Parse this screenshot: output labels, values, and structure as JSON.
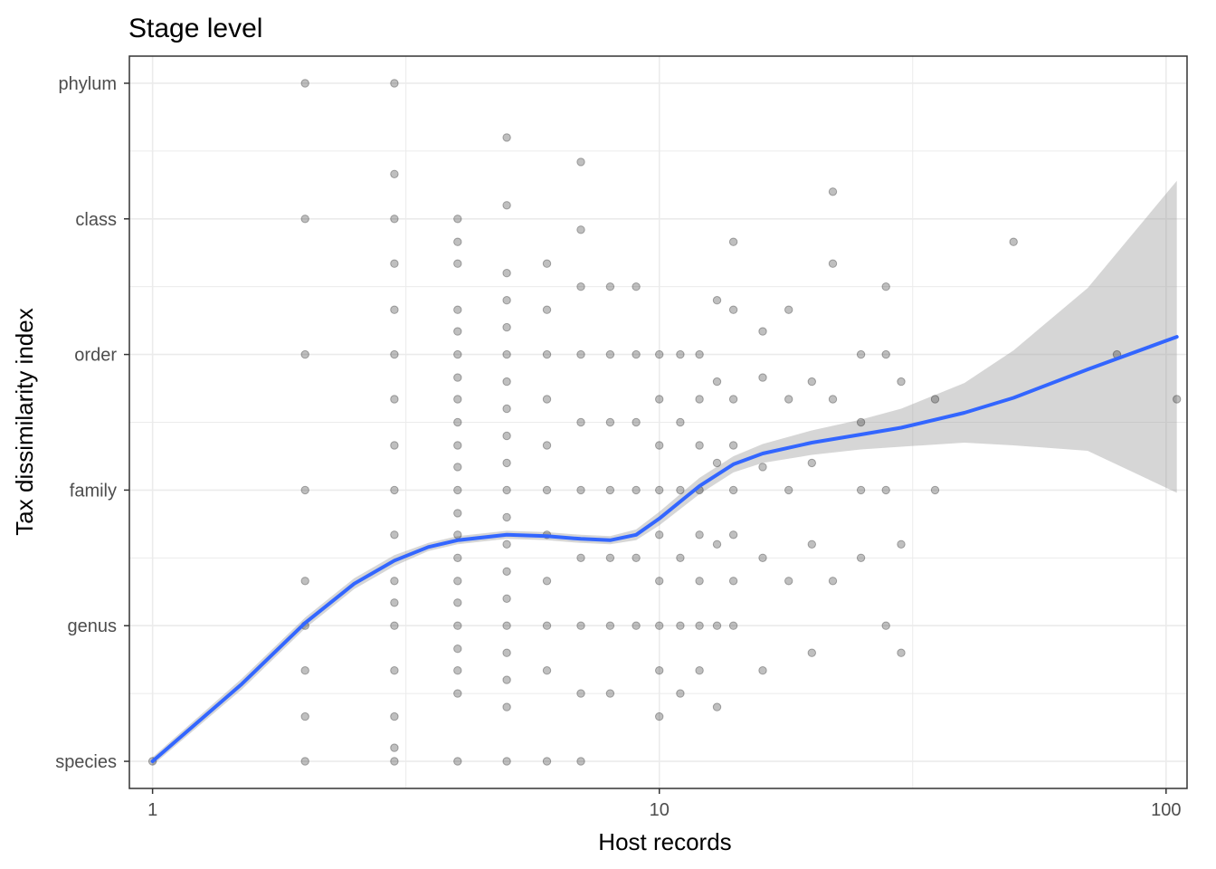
{
  "chart_data": {
    "type": "scatter",
    "title": "Stage level",
    "xlabel": "Host records",
    "ylabel": "Tax dissimilarity index",
    "x_scale": "log10",
    "xlim": [
      0.9,
      110
    ],
    "ylim": [
      0.8,
      6.2
    ],
    "x_ticks": [
      1,
      10,
      100
    ],
    "x_tick_labels": [
      "1",
      "10",
      "100"
    ],
    "y_ticks": [
      1,
      2,
      3,
      4,
      5,
      6
    ],
    "y_tick_labels": [
      "species",
      "genus",
      "family",
      "order",
      "class",
      "phylum"
    ],
    "grid": true,
    "legend": "none",
    "colors": {
      "points": "#000000",
      "smooth": "#3366ff",
      "ribbon": "#999999",
      "grid": "#ebebeb",
      "border": "#333333"
    },
    "points": [
      [
        1,
        1
      ],
      [
        2,
        1
      ],
      [
        2,
        1.33
      ],
      [
        2,
        1.67
      ],
      [
        2,
        2
      ],
      [
        2,
        2.33
      ],
      [
        2,
        3
      ],
      [
        2,
        4
      ],
      [
        2,
        5
      ],
      [
        2,
        6
      ],
      [
        3,
        1
      ],
      [
        3,
        1.1
      ],
      [
        3,
        1.33
      ],
      [
        3,
        1.67
      ],
      [
        3,
        2
      ],
      [
        3,
        2.17
      ],
      [
        3,
        2.33
      ],
      [
        3,
        2.67
      ],
      [
        3,
        3
      ],
      [
        3,
        3.33
      ],
      [
        3,
        3.67
      ],
      [
        3,
        4
      ],
      [
        3,
        4.33
      ],
      [
        3,
        4.67
      ],
      [
        3,
        5
      ],
      [
        3,
        5.33
      ],
      [
        3,
        6
      ],
      [
        4,
        1
      ],
      [
        4,
        1.5
      ],
      [
        4,
        1.67
      ],
      [
        4,
        1.83
      ],
      [
        4,
        2
      ],
      [
        4,
        2.17
      ],
      [
        4,
        2.33
      ],
      [
        4,
        2.5
      ],
      [
        4,
        2.67
      ],
      [
        4,
        2.83
      ],
      [
        4,
        3
      ],
      [
        4,
        3.17
      ],
      [
        4,
        3.33
      ],
      [
        4,
        3.5
      ],
      [
        4,
        3.67
      ],
      [
        4,
        3.83
      ],
      [
        4,
        4
      ],
      [
        4,
        4.17
      ],
      [
        4,
        4.33
      ],
      [
        4,
        4.67
      ],
      [
        4,
        4.83
      ],
      [
        4,
        5
      ],
      [
        5,
        1
      ],
      [
        5,
        1.4
      ],
      [
        5,
        1.6
      ],
      [
        5,
        1.8
      ],
      [
        5,
        2
      ],
      [
        5,
        2.2
      ],
      [
        5,
        2.4
      ],
      [
        5,
        2.6
      ],
      [
        5,
        2.8
      ],
      [
        5,
        3
      ],
      [
        5,
        3.2
      ],
      [
        5,
        3.4
      ],
      [
        5,
        3.6
      ],
      [
        5,
        3.8
      ],
      [
        5,
        4
      ],
      [
        5,
        4.2
      ],
      [
        5,
        4.4
      ],
      [
        5,
        4.6
      ],
      [
        5,
        5.1
      ],
      [
        5,
        5.6
      ],
      [
        6,
        1
      ],
      [
        6,
        1.67
      ],
      [
        6,
        2
      ],
      [
        6,
        2.33
      ],
      [
        6,
        2.67
      ],
      [
        6,
        3
      ],
      [
        6,
        3.33
      ],
      [
        6,
        3.67
      ],
      [
        6,
        4
      ],
      [
        6,
        4.33
      ],
      [
        6,
        4.67
      ],
      [
        7,
        1
      ],
      [
        7,
        1.5
      ],
      [
        7,
        2
      ],
      [
        7,
        2.5
      ],
      [
        7,
        3
      ],
      [
        7,
        3.5
      ],
      [
        7,
        4
      ],
      [
        7,
        4.5
      ],
      [
        7,
        4.92
      ],
      [
        7,
        5.42
      ],
      [
        8,
        1.5
      ],
      [
        8,
        2
      ],
      [
        8,
        2.5
      ],
      [
        8,
        3
      ],
      [
        8,
        3.5
      ],
      [
        8,
        4
      ],
      [
        8,
        4.5
      ],
      [
        9,
        2
      ],
      [
        9,
        2.5
      ],
      [
        9,
        3
      ],
      [
        9,
        3.5
      ],
      [
        9,
        4
      ],
      [
        9,
        4.5
      ],
      [
        10,
        1.33
      ],
      [
        10,
        1.67
      ],
      [
        10,
        2
      ],
      [
        10,
        2.33
      ],
      [
        10,
        2.67
      ],
      [
        10,
        3
      ],
      [
        10,
        3.33
      ],
      [
        10,
        3.67
      ],
      [
        10,
        4
      ],
      [
        11,
        1.5
      ],
      [
        11,
        2
      ],
      [
        11,
        2.5
      ],
      [
        11,
        3
      ],
      [
        11,
        3.5
      ],
      [
        11,
        4
      ],
      [
        12,
        1.67
      ],
      [
        12,
        2
      ],
      [
        12,
        2.33
      ],
      [
        12,
        2.67
      ],
      [
        12,
        3
      ],
      [
        12,
        3.33
      ],
      [
        12,
        3.67
      ],
      [
        12,
        4
      ],
      [
        13,
        1.4
      ],
      [
        13,
        2
      ],
      [
        13,
        2.6
      ],
      [
        13,
        3.2
      ],
      [
        13,
        3.8
      ],
      [
        13,
        4.4
      ],
      [
        14,
        2
      ],
      [
        14,
        2.33
      ],
      [
        14,
        2.67
      ],
      [
        14,
        3
      ],
      [
        14,
        3.33
      ],
      [
        14,
        3.67
      ],
      [
        14,
        4.33
      ],
      [
        14,
        4.83
      ],
      [
        16,
        1.67
      ],
      [
        16,
        2.5
      ],
      [
        16,
        3.17
      ],
      [
        16,
        3.83
      ],
      [
        16,
        4.17
      ],
      [
        18,
        2.33
      ],
      [
        18,
        3
      ],
      [
        18,
        3.67
      ],
      [
        18,
        4.33
      ],
      [
        20,
        1.8
      ],
      [
        20,
        2.6
      ],
      [
        20,
        3.2
      ],
      [
        20,
        3.8
      ],
      [
        22,
        2.33
      ],
      [
        22,
        3.67
      ],
      [
        22,
        4.67
      ],
      [
        22,
        5.2
      ],
      [
        25,
        2.5
      ],
      [
        25,
        3
      ],
      [
        25,
        3.5
      ],
      [
        25,
        4
      ],
      [
        28,
        2
      ],
      [
        28,
        3
      ],
      [
        28,
        4
      ],
      [
        28,
        4.5
      ],
      [
        30,
        1.8
      ],
      [
        30,
        2.6
      ],
      [
        30,
        3.8
      ],
      [
        35,
        3
      ],
      [
        35,
        3.67
      ],
      [
        50,
        4.83
      ],
      [
        80,
        4
      ],
      [
        105,
        3.67
      ]
    ],
    "smooth": [
      [
        1,
        1.0,
        0.03
      ],
      [
        1.5,
        1.57,
        0.04
      ],
      [
        2,
        2.02,
        0.04
      ],
      [
        2.5,
        2.31,
        0.04
      ],
      [
        3,
        2.48,
        0.04
      ],
      [
        3.5,
        2.58,
        0.03
      ],
      [
        4,
        2.63,
        0.03
      ],
      [
        5,
        2.67,
        0.03
      ],
      [
        6,
        2.66,
        0.03
      ],
      [
        7,
        2.64,
        0.03
      ],
      [
        8,
        2.63,
        0.03
      ],
      [
        9,
        2.67,
        0.04
      ],
      [
        10,
        2.79,
        0.05
      ],
      [
        12,
        3.03,
        0.06
      ],
      [
        14,
        3.19,
        0.06
      ],
      [
        16,
        3.27,
        0.07
      ],
      [
        20,
        3.35,
        0.09
      ],
      [
        25,
        3.41,
        0.11
      ],
      [
        30,
        3.46,
        0.14
      ],
      [
        40,
        3.57,
        0.22
      ],
      [
        50,
        3.68,
        0.35
      ],
      [
        70,
        3.89,
        0.6
      ],
      [
        105,
        4.13,
        1.15
      ]
    ]
  }
}
